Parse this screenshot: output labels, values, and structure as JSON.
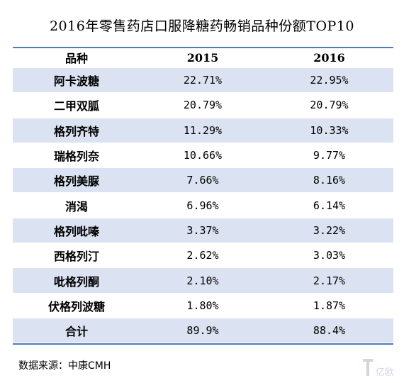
{
  "title": "2016年零售药店口服降糖药畅销品种份额TOP10",
  "table": {
    "headers": [
      "品种",
      "2015",
      "2016"
    ],
    "rows": [
      [
        "阿卡波糖",
        "22.71%",
        "22.95%"
      ],
      [
        "二甲双胍",
        "20.79%",
        "20.79%"
      ],
      [
        "格列齐特",
        "11.29%",
        "10.33%"
      ],
      [
        "瑞格列奈",
        "10.66%",
        "9.77%"
      ],
      [
        "格列美脲",
        "7.66%",
        "8.16%"
      ],
      [
        "消渴",
        "6.96%",
        "6.14%"
      ],
      [
        "格列吡嗪",
        "3.37%",
        "3.22%"
      ],
      [
        "西格列汀",
        "2.62%",
        "3.03%"
      ],
      [
        "吡格列酮",
        "2.10%",
        "2.17%"
      ],
      [
        "伏格列波糖",
        "1.80%",
        "1.87%"
      ],
      [
        "合计",
        "89.9%",
        "88.4%"
      ]
    ]
  },
  "source": "数据来源：中康CMH",
  "watermark": {
    "text": "亿欧",
    "icon": "yiou-logo-icon"
  },
  "colors": {
    "row_shade": "#dbe3f2",
    "rule": "#4f7bbf"
  }
}
